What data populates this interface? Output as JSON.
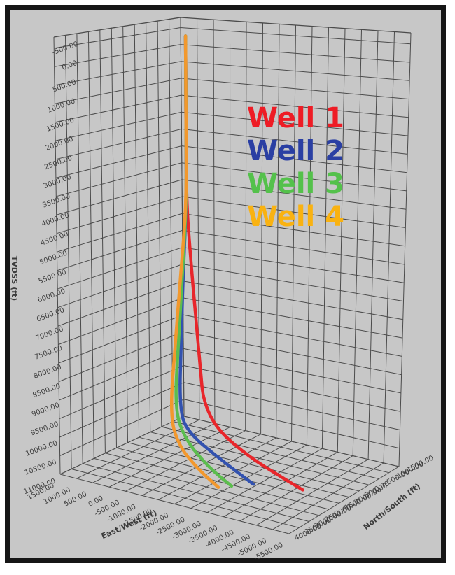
{
  "page": {
    "background": "#ffffff",
    "frame_border_color": "#161616",
    "plot_background": "#c7c7c7",
    "grid_color": "#4b4b4b",
    "label_color": "#3e3e3e"
  },
  "legend": {
    "items": [
      {
        "label": "Well 1",
        "color": "#ee1c25"
      },
      {
        "label": "Well 2",
        "color": "#2a3fa3"
      },
      {
        "label": "Well 3",
        "color": "#54c14b"
      },
      {
        "label": "Well 4",
        "color": "#f9b211"
      }
    ]
  },
  "chart_data": {
    "type": "line",
    "subtype": "3d-well-trajectories",
    "title": "",
    "grid": true,
    "legend_position": "upper-middle-right",
    "axes": {
      "tvdss": {
        "label": "TVDSS (ft)",
        "min": -500,
        "max": 11000,
        "step": 500,
        "tick_format": "0.00",
        "ticks": [
          -500,
          0,
          500,
          1000,
          1500,
          2000,
          2500,
          3000,
          3500,
          4000,
          4500,
          5000,
          5500,
          6000,
          6500,
          7000,
          7500,
          8000,
          8500,
          9000,
          9500,
          10000,
          10500,
          11000
        ]
      },
      "east_west": {
        "label": "East/West (ft)",
        "min": -5500,
        "max": 1500,
        "step": 500,
        "tick_format": "0.00",
        "ticks": [
          1500,
          1000,
          500,
          0,
          -500,
          -1000,
          -1500,
          -2000,
          -2500,
          -3000,
          -3500,
          -4000,
          -4500,
          -5000,
          -5500
        ]
      },
      "north_south": {
        "label": "North/South (ft)",
        "min": -1500,
        "max": 4000,
        "step": 500,
        "tick_format": "0.00",
        "ticks": [
          -1500,
          -1000,
          -500,
          0,
          500,
          1000,
          1500,
          2000,
          2500,
          3000,
          3500,
          4000
        ]
      }
    },
    "series": [
      {
        "name": "Well 1",
        "color": "#e8262b",
        "points_ew_ns_tvd": [
          [
            300,
            0,
            -500
          ],
          [
            300,
            0,
            2000
          ],
          [
            300,
            0,
            4200
          ],
          [
            150,
            60,
            5600
          ],
          [
            -100,
            180,
            7400
          ],
          [
            -330,
            300,
            8800
          ],
          [
            -460,
            370,
            9600
          ],
          [
            -1000,
            520,
            10250
          ],
          [
            -2200,
            820,
            10650
          ],
          [
            -3400,
            1080,
            10870
          ],
          [
            -4200,
            1250,
            11000
          ]
        ]
      },
      {
        "name": "Well 2",
        "color": "#3252af",
        "points_ew_ns_tvd": [
          [
            300,
            0,
            -500
          ],
          [
            300,
            0,
            2000
          ],
          [
            300,
            0,
            4200
          ],
          [
            345,
            80,
            6000
          ],
          [
            375,
            160,
            8000
          ],
          [
            395,
            240,
            10100
          ],
          [
            -100,
            500,
            10550
          ],
          [
            -1400,
            1000,
            10820
          ],
          [
            -2900,
            1640,
            11000
          ]
        ]
      },
      {
        "name": "Well 3",
        "color": "#5cbd4e",
        "points_ew_ns_tvd": [
          [
            300,
            0,
            -500
          ],
          [
            300,
            0,
            2000
          ],
          [
            300,
            0,
            4200
          ],
          [
            295,
            180,
            6000
          ],
          [
            275,
            420,
            8000
          ],
          [
            260,
            640,
            9900
          ],
          [
            -450,
            1180,
            10450
          ],
          [
            -1550,
            1730,
            10800
          ],
          [
            -2500,
            2075,
            11000
          ]
        ]
      },
      {
        "name": "Well 4",
        "color": "#f2982d",
        "points_ew_ns_tvd": [
          [
            300,
            0,
            -500
          ],
          [
            300,
            0,
            2000
          ],
          [
            300,
            0,
            4200
          ],
          [
            285,
            260,
            6000
          ],
          [
            250,
            600,
            8000
          ],
          [
            228,
            900,
            10000
          ],
          [
            -500,
            1550,
            10500
          ],
          [
            -1400,
            2000,
            10800
          ],
          [
            -2270,
            2350,
            11000
          ]
        ]
      }
    ]
  }
}
